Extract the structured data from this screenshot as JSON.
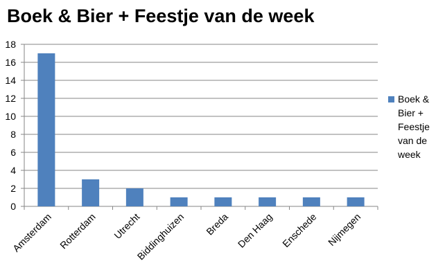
{
  "chart_data": {
    "type": "bar",
    "title": "Boek & Bier + Feestje van de week",
    "categories": [
      "Amsterdam",
      "Rotterdam",
      "Utrecht",
      "Biddinghuizen",
      "Breda",
      "Den Haag",
      "Enschede",
      "Nijmegen"
    ],
    "series": [
      {
        "name": "Boek & Bier + Feestje van de week",
        "color": "#4f81bd",
        "values": [
          17,
          3,
          2,
          1,
          1,
          1,
          1,
          1
        ]
      }
    ],
    "ylim": [
      0,
      18
    ],
    "yticks": [
      0,
      2,
      4,
      6,
      8,
      10,
      12,
      14,
      16,
      18
    ],
    "grid": true,
    "legend": "right"
  }
}
